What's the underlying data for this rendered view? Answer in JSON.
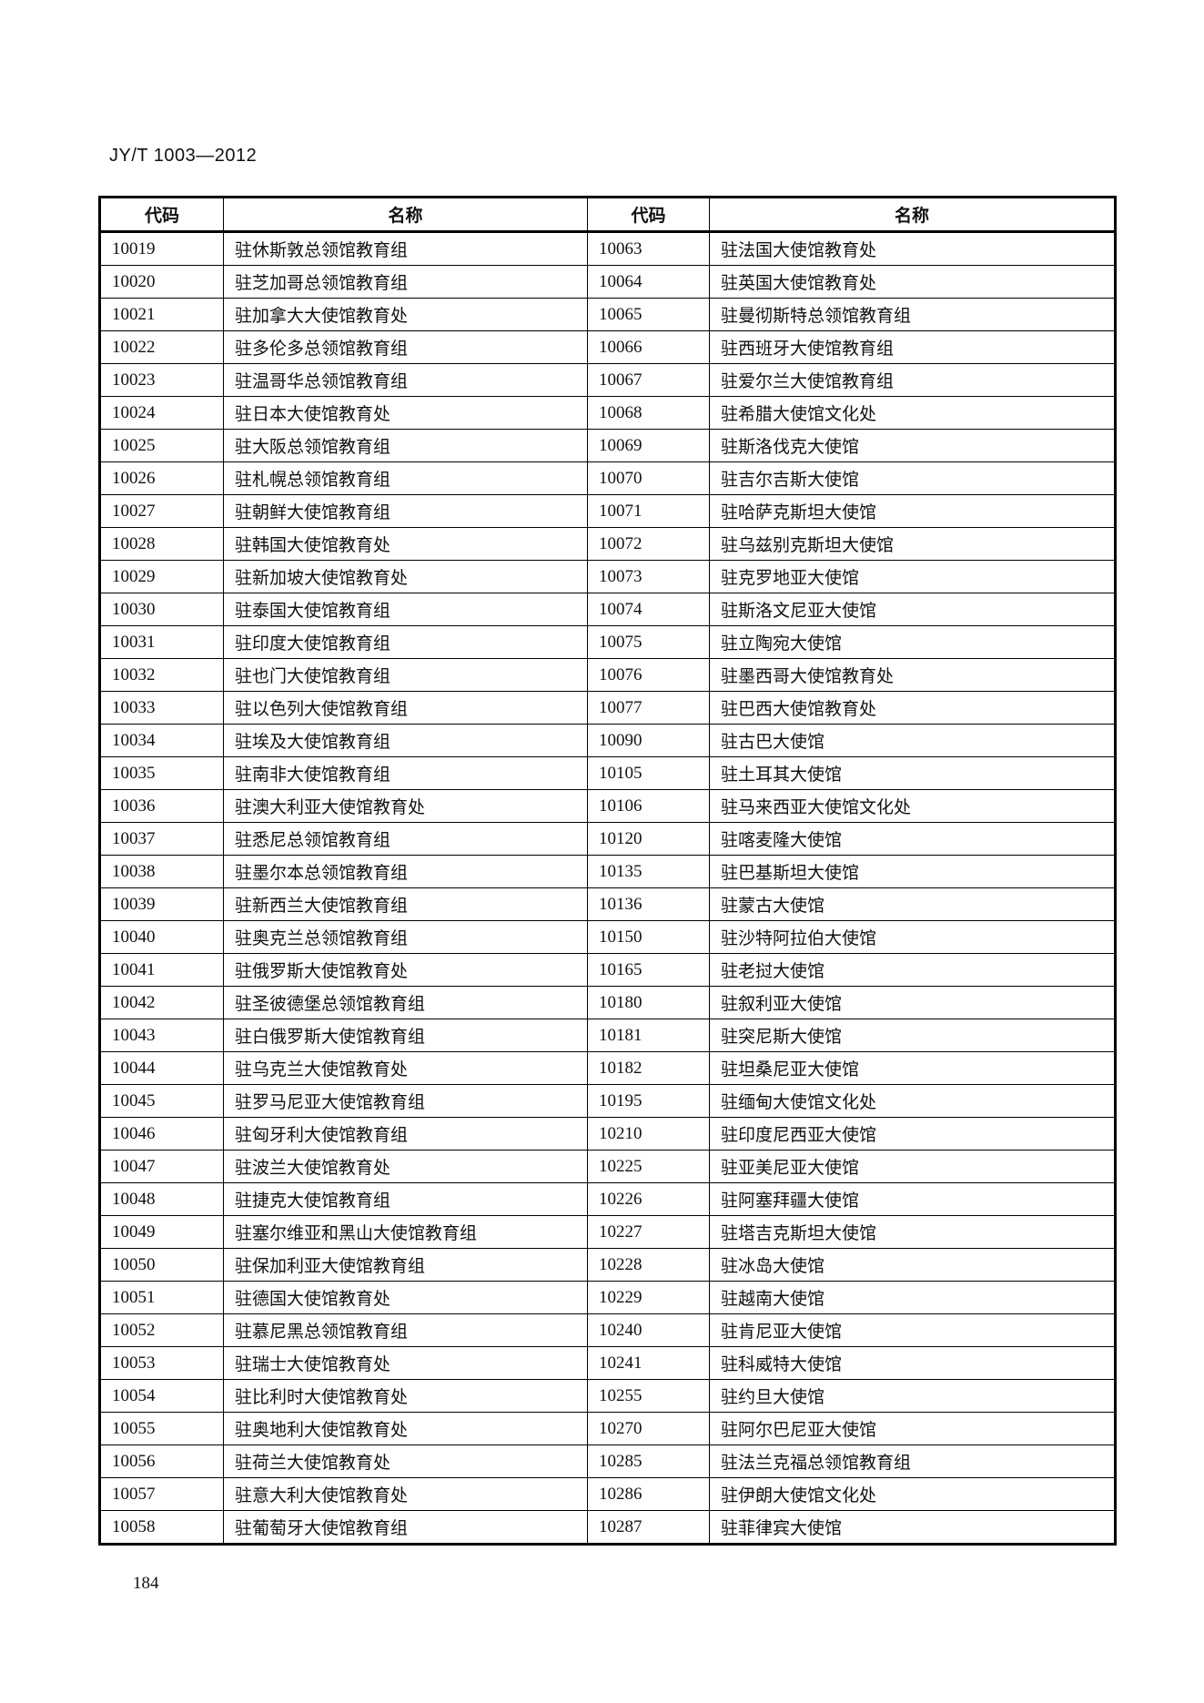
{
  "header": {
    "doc_code": "JY/T 1003—2012"
  },
  "table": {
    "columns": [
      "代码",
      "名称",
      "代码",
      "名称"
    ],
    "rows": [
      [
        "10019",
        "驻休斯敦总领馆教育组",
        "10063",
        "驻法国大使馆教育处"
      ],
      [
        "10020",
        "驻芝加哥总领馆教育组",
        "10064",
        "驻英国大使馆教育处"
      ],
      [
        "10021",
        "驻加拿大大使馆教育处",
        "10065",
        "驻曼彻斯特总领馆教育组"
      ],
      [
        "10022",
        "驻多伦多总领馆教育组",
        "10066",
        "驻西班牙大使馆教育组"
      ],
      [
        "10023",
        "驻温哥华总领馆教育组",
        "10067",
        "驻爱尔兰大使馆教育组"
      ],
      [
        "10024",
        "驻日本大使馆教育处",
        "10068",
        "驻希腊大使馆文化处"
      ],
      [
        "10025",
        "驻大阪总领馆教育组",
        "10069",
        "驻斯洛伐克大使馆"
      ],
      [
        "10026",
        "驻札幌总领馆教育组",
        "10070",
        "驻吉尔吉斯大使馆"
      ],
      [
        "10027",
        "驻朝鲜大使馆教育组",
        "10071",
        "驻哈萨克斯坦大使馆"
      ],
      [
        "10028",
        "驻韩国大使馆教育处",
        "10072",
        "驻乌兹别克斯坦大使馆"
      ],
      [
        "10029",
        "驻新加坡大使馆教育处",
        "10073",
        "驻克罗地亚大使馆"
      ],
      [
        "10030",
        "驻泰国大使馆教育组",
        "10074",
        "驻斯洛文尼亚大使馆"
      ],
      [
        "10031",
        "驻印度大使馆教育组",
        "10075",
        "驻立陶宛大使馆"
      ],
      [
        "10032",
        "驻也门大使馆教育组",
        "10076",
        "驻墨西哥大使馆教育处"
      ],
      [
        "10033",
        "驻以色列大使馆教育组",
        "10077",
        "驻巴西大使馆教育处"
      ],
      [
        "10034",
        "驻埃及大使馆教育组",
        "10090",
        "驻古巴大使馆"
      ],
      [
        "10035",
        "驻南非大使馆教育组",
        "10105",
        "驻土耳其大使馆"
      ],
      [
        "10036",
        "驻澳大利亚大使馆教育处",
        "10106",
        "驻马来西亚大使馆文化处"
      ],
      [
        "10037",
        "驻悉尼总领馆教育组",
        "10120",
        "驻喀麦隆大使馆"
      ],
      [
        "10038",
        "驻墨尔本总领馆教育组",
        "10135",
        "驻巴基斯坦大使馆"
      ],
      [
        "10039",
        "驻新西兰大使馆教育组",
        "10136",
        "驻蒙古大使馆"
      ],
      [
        "10040",
        "驻奥克兰总领馆教育组",
        "10150",
        "驻沙特阿拉伯大使馆"
      ],
      [
        "10041",
        "驻俄罗斯大使馆教育处",
        "10165",
        "驻老挝大使馆"
      ],
      [
        "10042",
        "驻圣彼德堡总领馆教育组",
        "10180",
        "驻叙利亚大使馆"
      ],
      [
        "10043",
        "驻白俄罗斯大使馆教育组",
        "10181",
        "驻突尼斯大使馆"
      ],
      [
        "10044",
        "驻乌克兰大使馆教育处",
        "10182",
        "驻坦桑尼亚大使馆"
      ],
      [
        "10045",
        "驻罗马尼亚大使馆教育组",
        "10195",
        "驻缅甸大使馆文化处"
      ],
      [
        "10046",
        "驻匈牙利大使馆教育组",
        "10210",
        "驻印度尼西亚大使馆"
      ],
      [
        "10047",
        "驻波兰大使馆教育处",
        "10225",
        "驻亚美尼亚大使馆"
      ],
      [
        "10048",
        "驻捷克大使馆教育组",
        "10226",
        "驻阿塞拜疆大使馆"
      ],
      [
        "10049",
        "驻塞尔维亚和黑山大使馆教育组",
        "10227",
        "驻塔吉克斯坦大使馆"
      ],
      [
        "10050",
        "驻保加利亚大使馆教育组",
        "10228",
        "驻冰岛大使馆"
      ],
      [
        "10051",
        "驻德国大使馆教育处",
        "10229",
        "驻越南大使馆"
      ],
      [
        "10052",
        "驻慕尼黑总领馆教育组",
        "10240",
        "驻肯尼亚大使馆"
      ],
      [
        "10053",
        "驻瑞士大使馆教育处",
        "10241",
        "驻科威特大使馆"
      ],
      [
        "10054",
        "驻比利时大使馆教育处",
        "10255",
        "驻约旦大使馆"
      ],
      [
        "10055",
        "驻奥地利大使馆教育处",
        "10270",
        "驻阿尔巴尼亚大使馆"
      ],
      [
        "10056",
        "驻荷兰大使馆教育处",
        "10285",
        "驻法兰克福总领馆教育组"
      ],
      [
        "10057",
        "驻意大利大使馆教育处",
        "10286",
        "驻伊朗大使馆文化处"
      ],
      [
        "10058",
        "驻葡萄牙大使馆教育组",
        "10287",
        "驻菲律宾大使馆"
      ]
    ]
  },
  "footer": {
    "page_number": "184"
  }
}
